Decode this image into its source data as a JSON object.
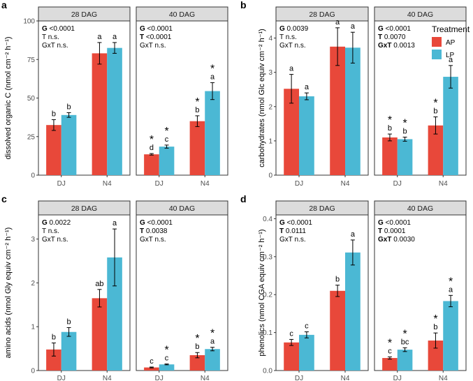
{
  "legend": {
    "title": "Treatment",
    "items": [
      {
        "label": "AP",
        "color": "#E8483A"
      },
      {
        "label": "LP",
        "color": "#4BB8D4"
      }
    ]
  },
  "colors": {
    "AP": "#E8483A",
    "LP": "#4BB8D4",
    "strip": "#DCDCDC",
    "panel_border": "#333333"
  },
  "chart_data": [
    {
      "id": "a",
      "panel_letter": "a",
      "type": "bar",
      "ylabel": "dissolved organic C (nmol cm⁻² h⁻¹)",
      "ylim": [
        0,
        100
      ],
      "yticks": [
        0,
        25,
        50,
        75,
        100
      ],
      "categories": [
        "DJ",
        "N4"
      ],
      "facets": [
        {
          "label": "28 DAG",
          "stats": [
            {
              "term": "G",
              "value": "<0.0001",
              "bold": true
            },
            {
              "term": "T",
              "value": "n.s.",
              "bold": false
            },
            {
              "term": "GxT",
              "value": "n.s.",
              "bold": false
            }
          ],
          "series": [
            {
              "name": "AP",
              "values": [
                32.5,
                79
              ],
              "errors": [
                3.5,
                7
              ],
              "letters": [
                "b",
                "a"
              ],
              "star": [
                false,
                false
              ]
            },
            {
              "name": "LP",
              "values": [
                39,
                82.5
              ],
              "errors": [
                1.5,
                3.5
              ],
              "letters": [
                "b",
                "a"
              ],
              "star": [
                false,
                false
              ]
            }
          ]
        },
        {
          "label": "40 DAG",
          "stats": [
            {
              "term": "G",
              "value": "<0.0001",
              "bold": true
            },
            {
              "term": "T",
              "value": "<0.0001",
              "bold": true
            },
            {
              "term": "GxT",
              "value": "n.s.",
              "bold": false
            }
          ],
          "series": [
            {
              "name": "AP",
              "values": [
                13.5,
                35
              ],
              "errors": [
                0.5,
                3.5
              ],
              "letters": [
                "d",
                "b"
              ],
              "star": [
                true,
                true
              ]
            },
            {
              "name": "LP",
              "values": [
                18.5,
                54.5
              ],
              "errors": [
                1.0,
                5.5
              ],
              "letters": [
                "c",
                "a"
              ],
              "star": [
                true,
                true
              ]
            }
          ]
        }
      ]
    },
    {
      "id": "b",
      "panel_letter": "b",
      "type": "bar",
      "ylabel": "carbohydrates (nmol Glc equiv cm⁻² h⁻¹)",
      "ylim": [
        0,
        4.5
      ],
      "yticks": [
        0,
        1,
        2,
        3,
        4
      ],
      "categories": [
        "DJ",
        "N4"
      ],
      "facets": [
        {
          "label": "28 DAG",
          "stats": [
            {
              "term": "G",
              "value": "0.0039",
              "bold": true
            },
            {
              "term": "T",
              "value": "n.s.",
              "bold": false
            },
            {
              "term": "GxT",
              "value": "n.s.",
              "bold": false
            }
          ],
          "series": [
            {
              "name": "AP",
              "values": [
                2.52,
                3.75
              ],
              "errors": [
                0.42,
                0.55
              ],
              "letters": [
                "a",
                "a"
              ],
              "star": [
                false,
                false
              ]
            },
            {
              "name": "LP",
              "values": [
                2.3,
                3.72
              ],
              "errors": [
                0.1,
                0.45
              ],
              "letters": [
                "a",
                "a"
              ],
              "star": [
                false,
                false
              ]
            }
          ]
        },
        {
          "label": "40 DAG",
          "stats": [
            {
              "term": "G",
              "value": "<0.0001",
              "bold": true
            },
            {
              "term": "T",
              "value": "0.0070",
              "bold": true
            },
            {
              "term": "GxT",
              "value": "0.0013",
              "bold": true
            }
          ],
          "series": [
            {
              "name": "AP",
              "values": [
                1.1,
                1.45
              ],
              "errors": [
                0.1,
                0.25
              ],
              "letters": [
                "b",
                "b"
              ],
              "star": [
                true,
                true
              ]
            },
            {
              "name": "LP",
              "values": [
                1.05,
                2.87
              ],
              "errors": [
                0.06,
                0.33
              ],
              "letters": [
                "b",
                "a"
              ],
              "star": [
                true,
                false
              ]
            }
          ]
        }
      ]
    },
    {
      "id": "c",
      "panel_letter": "c",
      "type": "bar",
      "ylabel": "amino acids (nmol Gly equiv cm⁻² h⁻¹)",
      "ylim": [
        0,
        3.55
      ],
      "yticks": [
        0,
        1,
        2,
        3
      ],
      "categories": [
        "DJ",
        "N4"
      ],
      "facets": [
        {
          "label": "28 DAG",
          "stats": [
            {
              "term": "G",
              "value": "0.0022",
              "bold": true
            },
            {
              "term": "T",
              "value": "n.s.",
              "bold": false
            },
            {
              "term": "GxT",
              "value": "n.s.",
              "bold": false
            }
          ],
          "series": [
            {
              "name": "AP",
              "values": [
                0.48,
                1.65
              ],
              "errors": [
                0.15,
                0.2
              ],
              "letters": [
                "b",
                "ab"
              ],
              "star": [
                false,
                false
              ]
            },
            {
              "name": "LP",
              "values": [
                0.88,
                2.58
              ],
              "errors": [
                0.1,
                0.65
              ],
              "letters": [
                "b",
                "a"
              ],
              "star": [
                false,
                false
              ]
            }
          ]
        },
        {
          "label": "40 DAG",
          "stats": [
            {
              "term": "G",
              "value": "<0.0001",
              "bold": true
            },
            {
              "term": "T",
              "value": "0.0038",
              "bold": true
            },
            {
              "term": "GxT",
              "value": "n.s.",
              "bold": false
            }
          ],
          "series": [
            {
              "name": "AP",
              "values": [
                0.07,
                0.35
              ],
              "errors": [
                0.01,
                0.06
              ],
              "letters": [
                "c",
                "b"
              ],
              "star": [
                false,
                true
              ]
            },
            {
              "name": "LP",
              "values": [
                0.14,
                0.49
              ],
              "errors": [
                0.01,
                0.04
              ],
              "letters": [
                "c",
                "a"
              ],
              "star": [
                true,
                true
              ]
            }
          ]
        }
      ]
    },
    {
      "id": "d",
      "panel_letter": "d",
      "type": "bar",
      "ylabel": "phenolics (nmol CGA equiv cm⁻² h⁻¹)",
      "ylim": [
        0,
        0.41
      ],
      "yticks": [
        0.0,
        0.1,
        0.2,
        0.3,
        0.4
      ],
      "categories": [
        "DJ",
        "N4"
      ],
      "facets": [
        {
          "label": "28 DAG",
          "stats": [
            {
              "term": "G",
              "value": "<0.0001",
              "bold": true
            },
            {
              "term": "T",
              "value": "0.0111",
              "bold": true
            },
            {
              "term": "GxT",
              "value": "n.s.",
              "bold": false
            }
          ],
          "series": [
            {
              "name": "AP",
              "values": [
                0.074,
                0.21
              ],
              "errors": [
                0.008,
                0.015
              ],
              "letters": [
                "c",
                "b"
              ],
              "star": [
                false,
                false
              ]
            },
            {
              "name": "LP",
              "values": [
                0.094,
                0.311
              ],
              "errors": [
                0.008,
                0.033
              ],
              "letters": [
                "c",
                "a"
              ],
              "star": [
                false,
                false
              ]
            }
          ]
        },
        {
          "label": "40 DAG",
          "stats": [
            {
              "term": "G",
              "value": "<0.0001",
              "bold": true
            },
            {
              "term": "T",
              "value": "0.0001",
              "bold": true
            },
            {
              "term": "GxT",
              "value": "0.0030",
              "bold": true
            }
          ],
          "series": [
            {
              "name": "AP",
              "values": [
                0.033,
                0.079
              ],
              "errors": [
                0.003,
                0.02
              ],
              "letters": [
                "c",
                "b"
              ],
              "star": [
                true,
                true
              ]
            },
            {
              "name": "LP",
              "values": [
                0.055,
                0.183
              ],
              "errors": [
                0.005,
                0.015
              ],
              "letters": [
                "bc",
                "a"
              ],
              "star": [
                true,
                true
              ]
            }
          ]
        }
      ]
    }
  ]
}
